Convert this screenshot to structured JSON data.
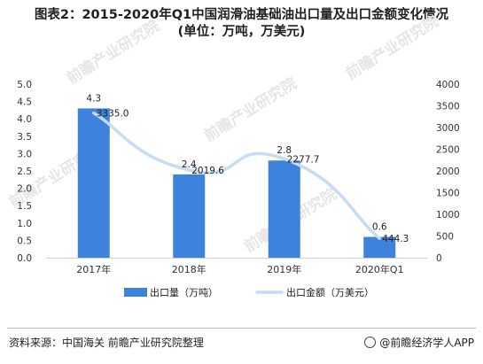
{
  "title_line1": "图表2：2015-2020年Q1中国润滑油基础油出口量及出口金额变化情况",
  "title_line2": "(单位：万吨，万美元)",
  "source": "资料来源：中国海关  前瞻产业研究院整理",
  "brand": "@前瞻经济学人APP",
  "watermark": "前瞻产业研究院",
  "colors": {
    "bar": "#3d82dc",
    "line": "#c5dcf3"
  },
  "chart_data": {
    "type": "bar",
    "categories": [
      "2017年",
      "2018年",
      "2019年",
      "2020年Q1"
    ],
    "series": [
      {
        "name": "出口量（万吨）",
        "type": "bar",
        "axis": "left",
        "values": [
          4.3,
          2.4,
          2.8,
          0.6
        ],
        "labels": [
          "4.3",
          "2.4",
          "2.8",
          "0.6"
        ]
      },
      {
        "name": "出口金额（万美元）",
        "type": "line",
        "axis": "right",
        "values": [
          3335.0,
          2019.6,
          2277.7,
          444.3
        ],
        "labels": [
          "3335.0",
          "2019.6",
          "2277.7",
          "444.3"
        ]
      }
    ],
    "y_left": {
      "range": [
        0,
        5
      ],
      "ticks": [
        "0.0",
        "0.5",
        "1.0",
        "1.5",
        "2.0",
        "2.5",
        "3.0",
        "3.5",
        "4.0",
        "4.5",
        "5.0"
      ]
    },
    "y_right": {
      "range": [
        0,
        4000
      ],
      "ticks": [
        "0",
        "500",
        "1000",
        "1500",
        "2000",
        "2500",
        "3000",
        "3500",
        "4000"
      ]
    },
    "grid": false,
    "legend_position": "bottom"
  }
}
